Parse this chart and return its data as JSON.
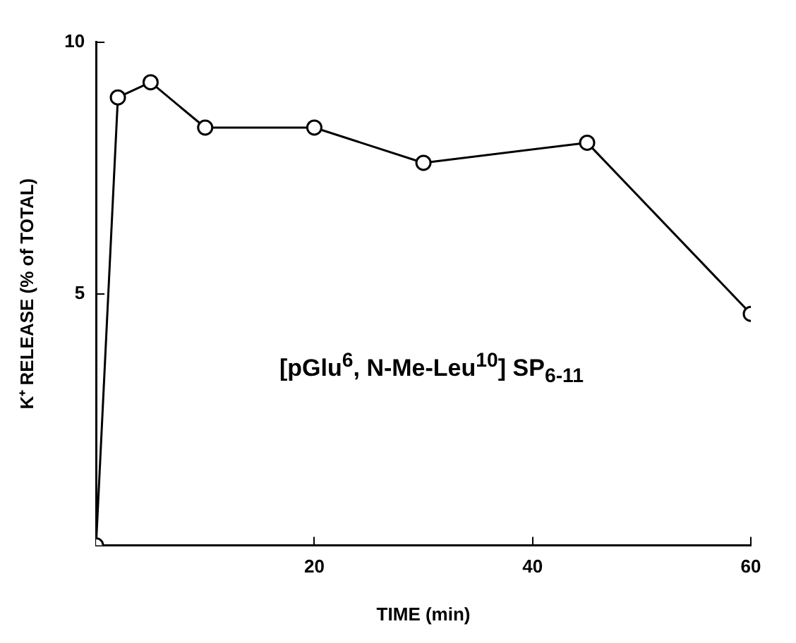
{
  "chart_data": {
    "type": "line",
    "xlabel": "TIME (min)",
    "ylabel": "K⁺ RELEASE (% of TOTAL)",
    "x": [
      0,
      2,
      5,
      10,
      20,
      30,
      45,
      60
    ],
    "series": [
      {
        "color": "#000000",
        "values": [
          0,
          8.9,
          9.2,
          8.3,
          8.3,
          7.6,
          8.0,
          4.6
        ]
      }
    ],
    "xlim": [
      0,
      60
    ],
    "xticks": [
      20,
      40,
      60
    ],
    "ylim": [
      0,
      10
    ],
    "yticks": [
      5,
      10
    ],
    "grid": false,
    "legend": false,
    "marker": "circle",
    "line_style": "solid",
    "annotations": [
      "[pGlu$^{6}$, N-Me-Leu$^{10}$] SP$_{6-11}$"
    ]
  }
}
